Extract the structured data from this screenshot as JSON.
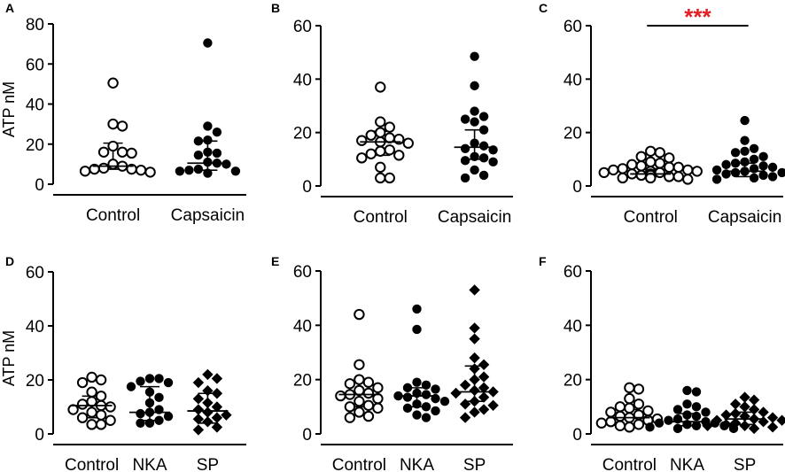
{
  "figure": {
    "panels": [
      {
        "id": "A",
        "letter": "A",
        "ylabel": "ATP nM",
        "ylim": [
          0,
          80
        ],
        "yticks": [
          0,
          20,
          40,
          60,
          80
        ],
        "categories": [
          "Control",
          "Capsaicin"
        ],
        "significance": null,
        "groups": [
          {
            "name": "Control",
            "marker": "open-circle",
            "points": [
              50.5,
              30,
              29,
              19,
              16,
              16,
              15.5,
              10,
              9,
              8,
              7.5,
              7.5,
              7,
              6.5,
              6
            ],
            "median": 9,
            "q1": 7.5,
            "q3": 20.5
          },
          {
            "name": "Capsaicin",
            "marker": "filled-circle",
            "points": [
              70.5,
              29,
              26,
              22,
              21.5,
              16,
              15.5,
              14.5,
              11,
              10.5,
              10,
              7.5,
              7,
              6.5,
              6.5,
              5.5
            ],
            "median": 10.5,
            "q1": 7,
            "q3": 21.5
          }
        ]
      },
      {
        "id": "B",
        "letter": "B",
        "ylabel": "",
        "ylim": [
          0,
          60
        ],
        "yticks": [
          0,
          20,
          40,
          60
        ],
        "categories": [
          "Control",
          "Capsaicin"
        ],
        "significance": null,
        "groups": [
          {
            "name": "Control",
            "marker": "open-circle",
            "points": [
              37,
              24,
              22,
              20,
              19,
              18,
              17.5,
              17,
              16.5,
              16,
              13.5,
              13,
              12,
              11.5,
              10.5,
              7,
              3,
              3
            ],
            "median": 16.5,
            "q1": 11.5,
            "q3": 20.5
          },
          {
            "name": "Capsaicin",
            "marker": "filled-circle",
            "points": [
              48.5,
              37.5,
              28,
              26,
              25,
              24,
              21,
              16,
              15,
              14,
              13.5,
              11,
              10.5,
              9.5,
              9,
              6,
              4,
              3
            ],
            "median": 14.5,
            "q1": 10,
            "q3": 21
          }
        ]
      },
      {
        "id": "C",
        "letter": "C",
        "ylabel": "",
        "ylim": [
          0,
          60
        ],
        "yticks": [
          0,
          20,
          40,
          60
        ],
        "categories": [
          "Control",
          "Capsaicin"
        ],
        "significance": "***",
        "groups": [
          {
            "name": "Control",
            "marker": "open-circle",
            "points": [
              13,
              12.5,
              11,
              10.5,
              9,
              8.5,
              8,
              7.5,
              7,
              7,
              6.5,
              6,
              6,
              5.5,
              5.5,
              5,
              5,
              4.5,
              4.5,
              4,
              4,
              3.5,
              3.5,
              3,
              3,
              2.5
            ],
            "median": 4.5,
            "q1": 3.5,
            "q3": 6.5
          },
          {
            "name": "Capsaicin",
            "marker": "filled-circle",
            "points": [
              24.5,
              17,
              14,
              13,
              12.5,
              11,
              10,
              9,
              8.5,
              8,
              7.5,
              7,
              6.5,
              6,
              5.5,
              5,
              5,
              4.5,
              4,
              3.5,
              3,
              2.5
            ],
            "median": 5.5,
            "q1": 3.5,
            "q3": 8.5
          }
        ]
      },
      {
        "id": "D",
        "letter": "D",
        "ylabel": "ATP nM",
        "ylim": [
          0,
          60
        ],
        "yticks": [
          0,
          20,
          40,
          60
        ],
        "categories": [
          "Control",
          "NKA",
          "SP"
        ],
        "significance": null,
        "groups": [
          {
            "name": "Control",
            "marker": "open-circle",
            "points": [
              21,
              20,
              19,
              15.5,
              14,
              12,
              11,
              10.5,
              10,
              9,
              8,
              7,
              6,
              5,
              3.5,
              3.5
            ],
            "median": 10.5,
            "q1": 6,
            "q3": 14
          },
          {
            "name": "NKA",
            "marker": "filled-circle",
            "points": [
              20.5,
              20.5,
              19.5,
              19,
              17.5,
              15.5,
              13.5,
              11.5,
              9,
              8,
              7.5,
              6.5,
              5,
              4,
              4
            ],
            "median": 8,
            "q1": 5,
            "q3": 17.5
          },
          {
            "name": "SP",
            "marker": "filled-diamond",
            "points": [
              22,
              20.5,
              19,
              16,
              15,
              13,
              11.5,
              10,
              9,
              8,
              7,
              6,
              5.5,
              4.5,
              2.5,
              1.5
            ],
            "median": 8.5,
            "q1": 4,
            "q3": 15
          }
        ]
      },
      {
        "id": "E",
        "letter": "E",
        "ylabel": "",
        "ylim": [
          0,
          60
        ],
        "yticks": [
          0,
          20,
          40,
          60
        ],
        "categories": [
          "Control",
          "NKA",
          "SP"
        ],
        "significance": null,
        "groups": [
          {
            "name": "Control",
            "marker": "open-circle",
            "points": [
              44,
              25.5,
              20,
              19,
              18.5,
              17,
              16,
              15,
              14.5,
              14,
              13,
              12,
              10.5,
              10,
              9.5,
              8,
              6.5,
              6
            ],
            "median": 14.5,
            "q1": 10,
            "q3": 19
          },
          {
            "name": "NKA",
            "marker": "filled-circle",
            "points": [
              46,
              38.5,
              19,
              18,
              17,
              16.5,
              15,
              14.5,
              14,
              13.5,
              13,
              12,
              11,
              10,
              9.5,
              8.5,
              7,
              6
            ],
            "median": 14,
            "q1": 10,
            "q3": 17
          },
          {
            "name": "SP",
            "marker": "filled-diamond",
            "points": [
              53,
              39,
              35,
              28,
              25.5,
              24,
              21,
              20,
              18,
              17,
              16,
              15.5,
              15,
              13.5,
              12,
              11,
              10.5,
              9,
              8,
              6
            ],
            "median": 15.5,
            "q1": 12,
            "q3": 25
          }
        ]
      },
      {
        "id": "F",
        "letter": "F",
        "ylabel": "",
        "ylim": [
          0,
          60
        ],
        "yticks": [
          0,
          20,
          40,
          60
        ],
        "categories": [
          "Control",
          "NKA",
          "SP"
        ],
        "significance": null,
        "groups": [
          {
            "name": "Control",
            "marker": "open-circle",
            "points": [
              17,
              16.5,
              13,
              11,
              10,
              9.5,
              8.5,
              8,
              7,
              6.5,
              6,
              5.5,
              5,
              4.5,
              4,
              3.5,
              3,
              2.5
            ],
            "median": 6,
            "q1": 3.5,
            "q3": 9
          },
          {
            "name": "NKA",
            "marker": "filled-circle",
            "points": [
              16,
              15.5,
              11,
              10,
              9,
              8,
              7,
              6.5,
              5.5,
              5,
              4.5,
              4,
              4,
              3.5,
              3,
              3,
              2.5,
              2,
              2
            ],
            "median": 4.5,
            "q1": 3,
            "q3": 7.5
          },
          {
            "name": "SP",
            "marker": "filled-diamond",
            "points": [
              13.5,
              12.5,
              11,
              10,
              9,
              8,
              7.5,
              7,
              6.5,
              6,
              5.5,
              5,
              5,
              4.5,
              4,
              3.5,
              3,
              3,
              2.5,
              2
            ],
            "median": 5.5,
            "q1": 3.5,
            "q3": 8
          }
        ]
      }
    ]
  },
  "chart_data": [
    {
      "type": "scatter",
      "panel": "A",
      "title": "",
      "xlabel": "",
      "ylabel": "ATP nM",
      "ylim": [
        0,
        80
      ],
      "categories": [
        "Control",
        "Capsaicin"
      ],
      "series": [
        {
          "name": "Control",
          "values": [
            50.5,
            30,
            29,
            19,
            16,
            16,
            15.5,
            10,
            9,
            8,
            7.5,
            7.5,
            7,
            6.5,
            6
          ],
          "median": 9,
          "iqr": [
            7.5,
            20.5
          ]
        },
        {
          "name": "Capsaicin",
          "values": [
            70.5,
            29,
            26,
            22,
            21.5,
            16,
            15.5,
            14.5,
            11,
            10.5,
            10,
            7.5,
            7,
            6.5,
            6.5,
            5.5
          ],
          "median": 10.5,
          "iqr": [
            7,
            21.5
          ]
        }
      ]
    },
    {
      "type": "scatter",
      "panel": "B",
      "title": "",
      "xlabel": "",
      "ylabel": "",
      "ylim": [
        0,
        60
      ],
      "categories": [
        "Control",
        "Capsaicin"
      ],
      "series": [
        {
          "name": "Control",
          "values": [
            37,
            24,
            22,
            20,
            19,
            18,
            17.5,
            17,
            16.5,
            16,
            13.5,
            13,
            12,
            11.5,
            10.5,
            7,
            3,
            3
          ],
          "median": 16.5,
          "iqr": [
            11.5,
            20.5
          ]
        },
        {
          "name": "Capsaicin",
          "values": [
            48.5,
            37.5,
            28,
            26,
            25,
            24,
            21,
            16,
            15,
            14,
            13.5,
            11,
            10.5,
            9.5,
            9,
            6,
            4,
            3
          ],
          "median": 14.5,
          "iqr": [
            10,
            21
          ]
        }
      ]
    },
    {
      "type": "scatter",
      "panel": "C",
      "title": "",
      "xlabel": "",
      "ylabel": "",
      "ylim": [
        0,
        60
      ],
      "categories": [
        "Control",
        "Capsaicin"
      ],
      "annotation": "***",
      "series": [
        {
          "name": "Control",
          "values": [
            13,
            12.5,
            11,
            10.5,
            9,
            8.5,
            8,
            7.5,
            7,
            7,
            6.5,
            6,
            6,
            5.5,
            5.5,
            5,
            5,
            4.5,
            4.5,
            4,
            4,
            3.5,
            3.5,
            3,
            3,
            2.5
          ],
          "median": 4.5,
          "iqr": [
            3.5,
            6.5
          ]
        },
        {
          "name": "Capsaicin",
          "values": [
            24.5,
            17,
            14,
            13,
            12.5,
            11,
            10,
            9,
            8.5,
            8,
            7.5,
            7,
            6.5,
            6,
            5.5,
            5,
            5,
            4.5,
            4,
            3.5,
            3,
            2.5
          ],
          "median": 5.5,
          "iqr": [
            3.5,
            8.5
          ]
        }
      ]
    },
    {
      "type": "scatter",
      "panel": "D",
      "title": "",
      "xlabel": "",
      "ylabel": "ATP nM",
      "ylim": [
        0,
        60
      ],
      "categories": [
        "Control",
        "NKA",
        "SP"
      ],
      "series": [
        {
          "name": "Control",
          "values": [
            21,
            20,
            19,
            15.5,
            14,
            12,
            11,
            10.5,
            10,
            9,
            8,
            7,
            6,
            5,
            3.5,
            3.5
          ],
          "median": 10.5,
          "iqr": [
            6,
            14
          ]
        },
        {
          "name": "NKA",
          "values": [
            20.5,
            20.5,
            19.5,
            19,
            17.5,
            15.5,
            13.5,
            11.5,
            9,
            8,
            7.5,
            6.5,
            5,
            4,
            4
          ],
          "median": 8,
          "iqr": [
            5,
            17.5
          ]
        },
        {
          "name": "SP",
          "values": [
            22,
            20.5,
            19,
            16,
            15,
            13,
            11.5,
            10,
            9,
            8,
            7,
            6,
            5.5,
            4.5,
            2.5,
            1.5
          ],
          "median": 8.5,
          "iqr": [
            4,
            15
          ]
        }
      ]
    },
    {
      "type": "scatter",
      "panel": "E",
      "title": "",
      "xlabel": "",
      "ylabel": "",
      "ylim": [
        0,
        60
      ],
      "categories": [
        "Control",
        "NKA",
        "SP"
      ],
      "series": [
        {
          "name": "Control",
          "values": [
            44,
            25.5,
            20,
            19,
            18.5,
            17,
            16,
            15,
            14.5,
            14,
            13,
            12,
            10.5,
            10,
            9.5,
            8,
            6.5,
            6
          ],
          "median": 14.5,
          "iqr": [
            10,
            19
          ]
        },
        {
          "name": "NKA",
          "values": [
            46,
            38.5,
            19,
            18,
            17,
            16.5,
            15,
            14.5,
            14,
            13.5,
            13,
            12,
            11,
            10,
            9.5,
            8.5,
            7,
            6
          ],
          "median": 14,
          "iqr": [
            10,
            17
          ]
        },
        {
          "name": "SP",
          "values": [
            53,
            39,
            35,
            28,
            25.5,
            24,
            21,
            20,
            18,
            17,
            16,
            15.5,
            15,
            13.5,
            12,
            11,
            10.5,
            9,
            8,
            6
          ],
          "median": 15.5,
          "iqr": [
            12,
            25
          ]
        }
      ]
    },
    {
      "type": "scatter",
      "panel": "F",
      "title": "",
      "xlabel": "",
      "ylabel": "",
      "ylim": [
        0,
        60
      ],
      "categories": [
        "Control",
        "NKA",
        "SP"
      ],
      "series": [
        {
          "name": "Control",
          "values": [
            17,
            16.5,
            13,
            11,
            10,
            9.5,
            8.5,
            8,
            7,
            6.5,
            6,
            5.5,
            5,
            4.5,
            4,
            3.5,
            3,
            2.5
          ],
          "median": 6,
          "iqr": [
            3.5,
            9
          ]
        },
        {
          "name": "NKA",
          "values": [
            16,
            15.5,
            11,
            10,
            9,
            8,
            7,
            6.5,
            5.5,
            5,
            4.5,
            4,
            4,
            3.5,
            3,
            3,
            2.5,
            2,
            2
          ],
          "median": 4.5,
          "iqr": [
            3,
            7.5
          ]
        },
        {
          "name": "SP",
          "values": [
            13.5,
            12.5,
            11,
            10,
            9,
            8,
            7.5,
            7,
            6.5,
            6,
            5.5,
            5,
            5,
            4.5,
            4,
            3.5,
            3,
            3,
            2.5,
            2
          ],
          "median": 5.5,
          "iqr": [
            3.5,
            8
          ]
        }
      ]
    }
  ],
  "colors": {
    "axis": "#000000",
    "significance": "#e31e24"
  }
}
